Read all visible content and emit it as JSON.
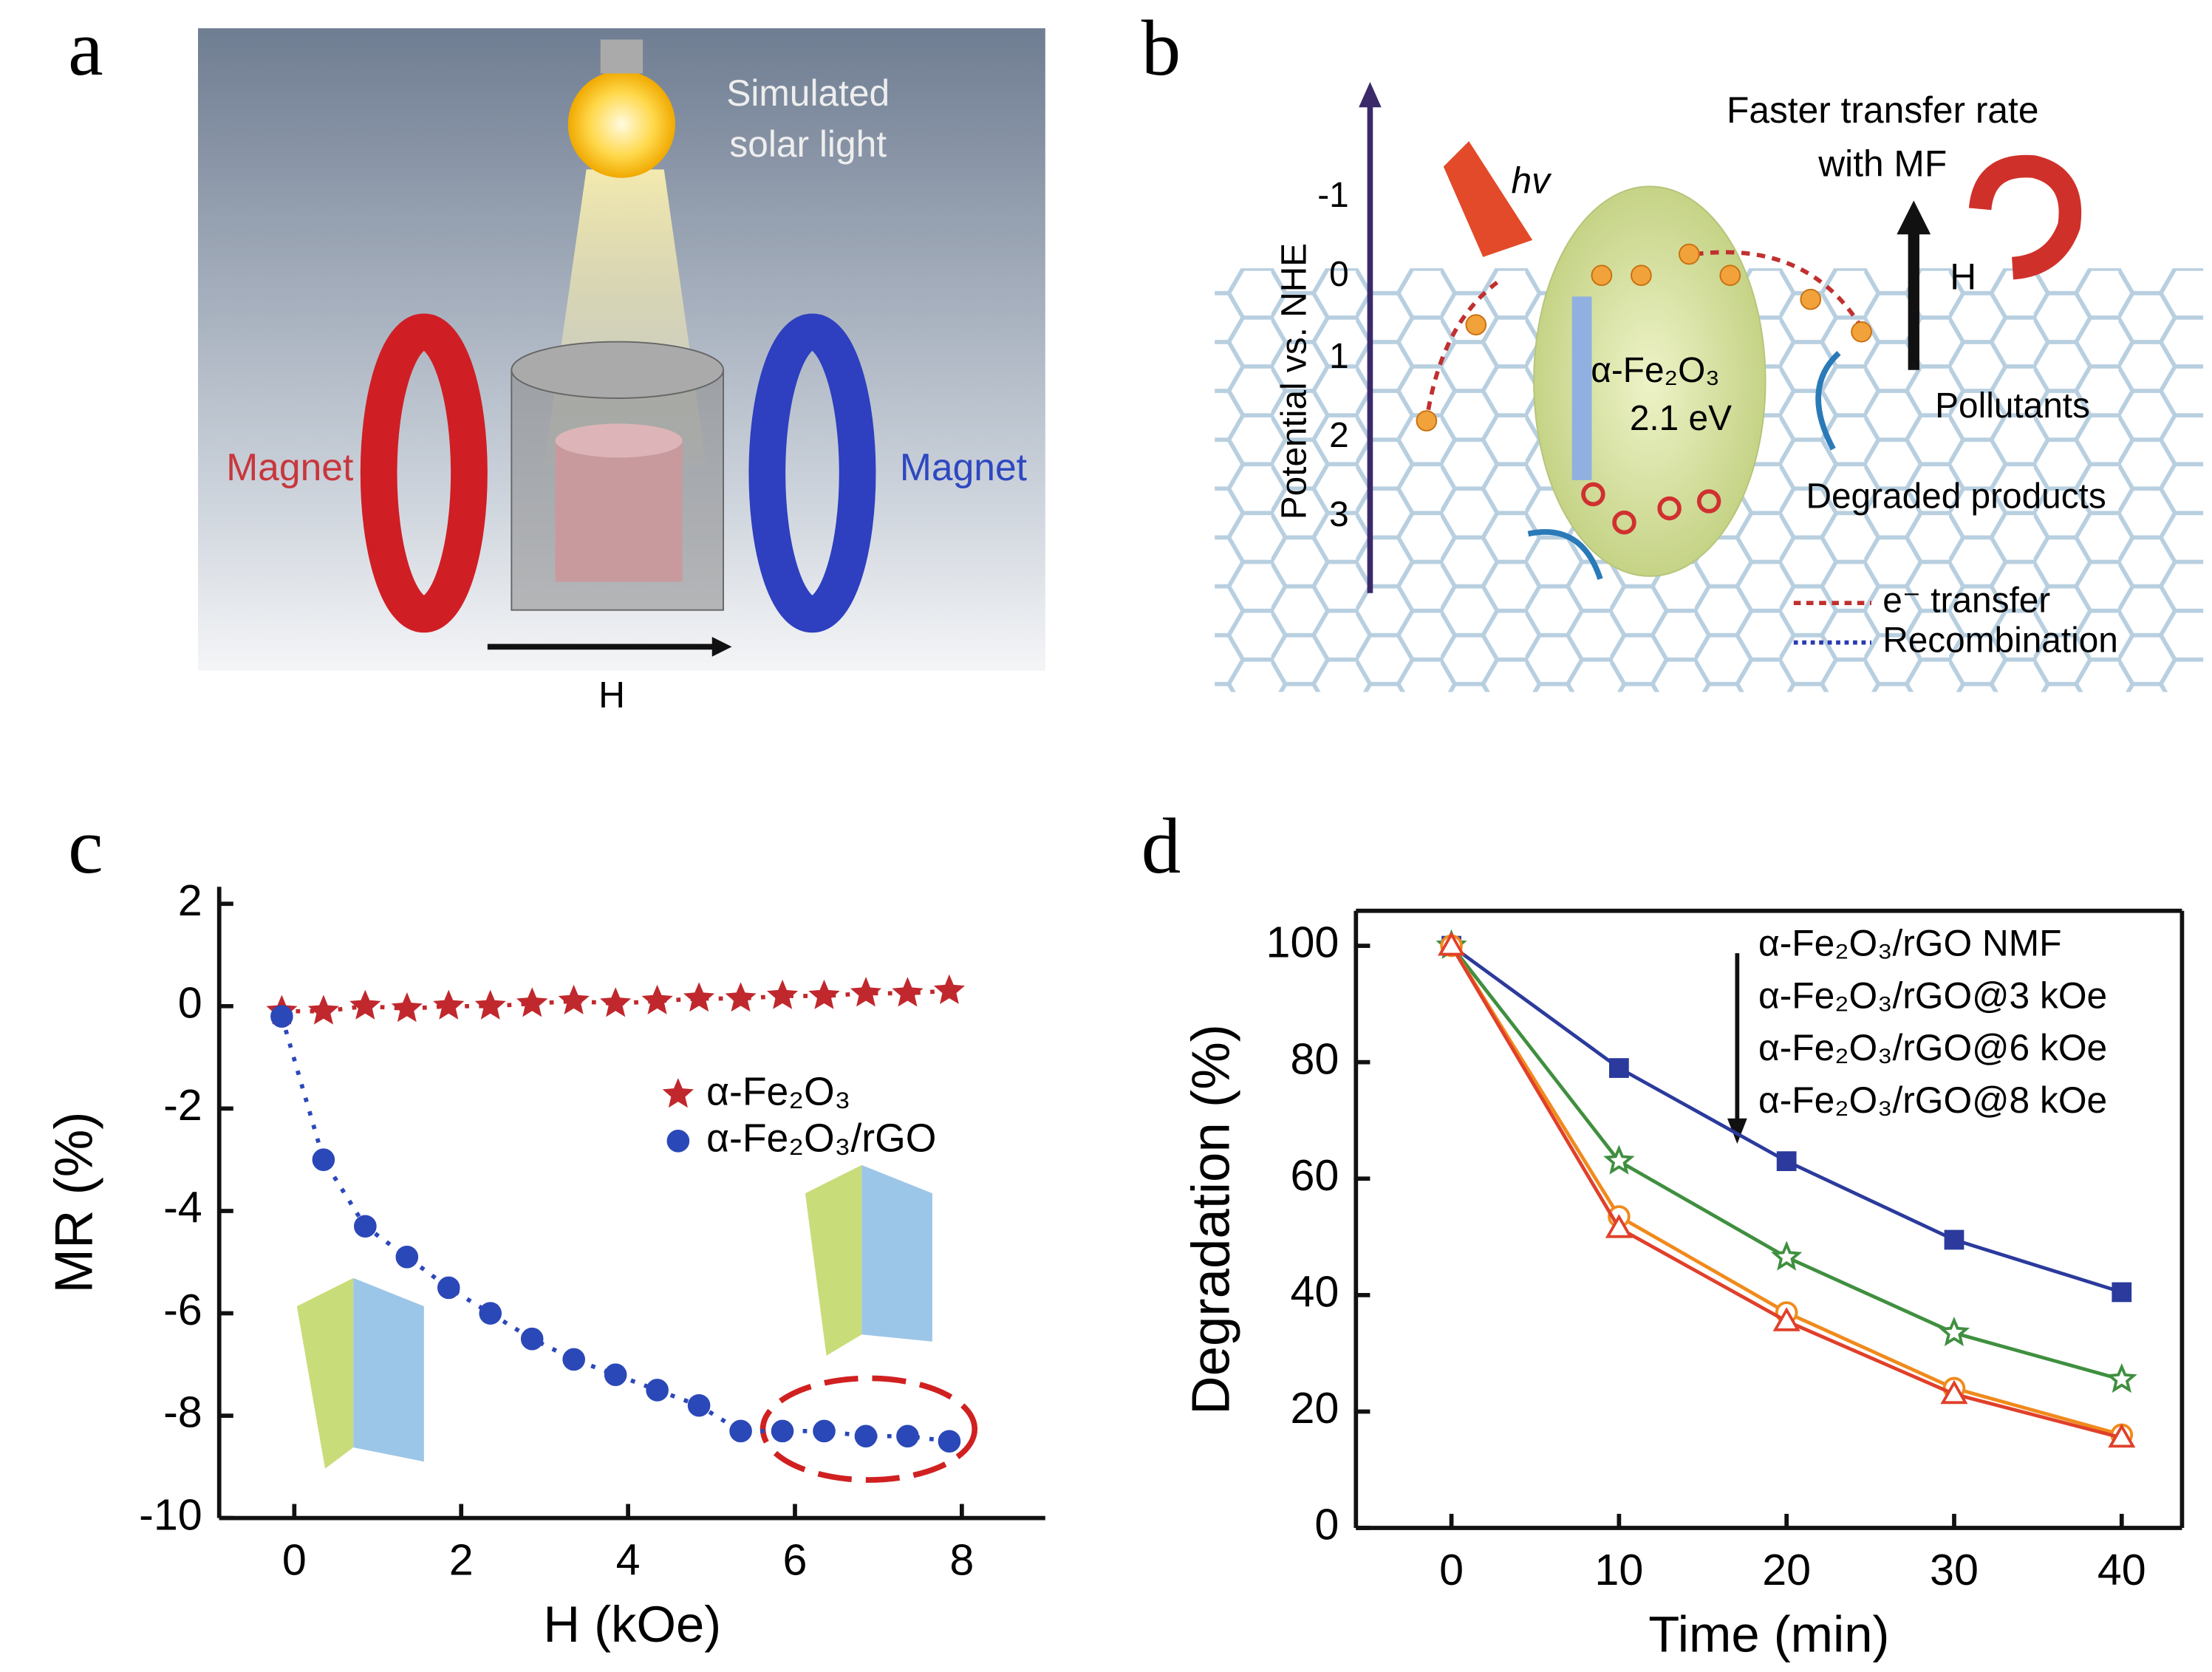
{
  "panel_labels": [
    "a",
    "b",
    "c",
    "d"
  ],
  "panel_a": {
    "light_label": [
      "Simulated",
      "solar light"
    ],
    "magnet_left": "Magnet",
    "magnet_right": "Magnet",
    "field": "H"
  },
  "panel_b": {
    "rate_label": [
      "Faster transfer rate",
      "with MF"
    ],
    "photon": "hv",
    "field": "H",
    "axis_label": "Potential vs. NHE",
    "axis_ticks": [
      "-1",
      "0",
      "1",
      "2",
      "3"
    ],
    "material": "α-Fe₂O₃",
    "band_gap": "2.1 eV",
    "pollutants": "Pollutants",
    "products": "Degraded products",
    "legend": [
      "e⁻ transfer",
      "Recombination"
    ]
  },
  "chart_data": [
    {
      "type": "line",
      "x_label": "H (kOe)",
      "y_label": "MR (%)",
      "xlim": [
        -0.9,
        9.0
      ],
      "ylim": [
        -10,
        2
      ],
      "xticks": [
        0,
        2,
        4,
        6,
        8
      ],
      "yticks": [
        2,
        0,
        -2,
        -4,
        -6,
        -8,
        -10
      ],
      "line_style": "dotted",
      "legend": "inside",
      "frame": false,
      "x": [
        -0.15,
        0.35,
        0.85,
        1.35,
        1.85,
        2.35,
        2.85,
        3.35,
        3.85,
        4.35,
        4.85,
        5.35,
        5.85,
        6.35,
        6.85,
        7.35,
        7.85
      ],
      "series": [
        {
          "name": "α-Fe₂O₃",
          "color": "#c0282d",
          "marker": "star",
          "fill": true,
          "values": [
            -0.1,
            -0.1,
            0,
            -0.05,
            0,
            0,
            0.05,
            0.1,
            0.05,
            0.1,
            0.15,
            0.15,
            0.2,
            0.2,
            0.25,
            0.25,
            0.3
          ]
        },
        {
          "name": "α-Fe₂O₃/rGO",
          "color": "#2b48b8",
          "marker": "circle",
          "fill": true,
          "values": [
            -0.2,
            -3,
            -4.3,
            -4.9,
            -5.5,
            -6.0,
            -6.5,
            -6.9,
            -7.2,
            -7.5,
            -7.8,
            -8.3,
            -8.3,
            -8.3,
            -8.4,
            -8.4,
            -8.5
          ]
        }
      ]
    },
    {
      "type": "line",
      "x_label": "Time (min)",
      "y_label": "Degradation (%)",
      "xlim": [
        -5.7,
        43.6
      ],
      "ylim": [
        0,
        106
      ],
      "xticks": [
        0,
        10,
        20,
        30,
        40
      ],
      "yticks": [
        0,
        20,
        40,
        60,
        80,
        100
      ],
      "line_style": "solid",
      "legend": "top-right",
      "frame": true,
      "x": [
        0,
        10,
        20,
        30,
        40
      ],
      "series": [
        {
          "name": "α-Fe₂O₃/rGO NMF",
          "color": "#2b3a9c",
          "marker": "square",
          "fill": true,
          "values": [
            100,
            79,
            63,
            49.5,
            40.5
          ]
        },
        {
          "name": "α-Fe₂O₃/rGO@3 kOe",
          "color": "#3f8f3f",
          "marker": "star",
          "fill": false,
          "values": [
            100,
            63,
            46.5,
            33.5,
            25.5
          ]
        },
        {
          "name": "α-Fe₂O₃/rGO@6 kOe",
          "color": "#f08a1c",
          "marker": "circle",
          "fill": false,
          "values": [
            100,
            53.5,
            37,
            24,
            16
          ]
        },
        {
          "name": "α-Fe₂O₃/rGO@8 kOe",
          "color": "#e0402a",
          "marker": "triangle",
          "fill": false,
          "values": [
            100,
            51.5,
            35.5,
            23,
            15.5
          ]
        }
      ]
    }
  ]
}
